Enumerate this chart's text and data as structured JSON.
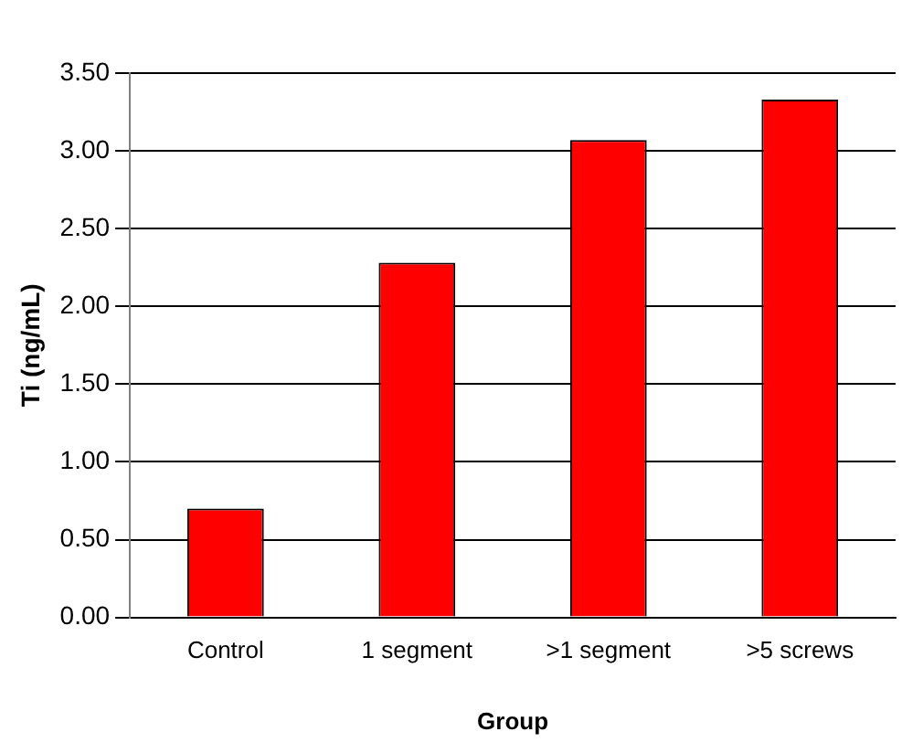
{
  "chart_data": {
    "type": "bar",
    "xlabel": "Group",
    "ylabel": "Ti (ng/mL)",
    "categories": [
      "Control",
      "1 segment",
      ">1 segment",
      ">5 screws"
    ],
    "values": [
      0.7,
      2.28,
      3.07,
      3.33
    ],
    "color": "#ff0000",
    "ylim": [
      0,
      3.5
    ],
    "yticks": [
      {
        "value": 0,
        "label": "0.00"
      },
      {
        "value": 0.5,
        "label": "0.50"
      },
      {
        "value": 1,
        "label": "1.00"
      },
      {
        "value": 1.5,
        "label": "1.50"
      },
      {
        "value": 2,
        "label": "2.00"
      },
      {
        "value": 2.5,
        "label": "2.50"
      },
      {
        "value": 3,
        "label": "3.00"
      },
      {
        "value": 3.5,
        "label": "3.50"
      }
    ],
    "grid": "y",
    "legend": false
  }
}
